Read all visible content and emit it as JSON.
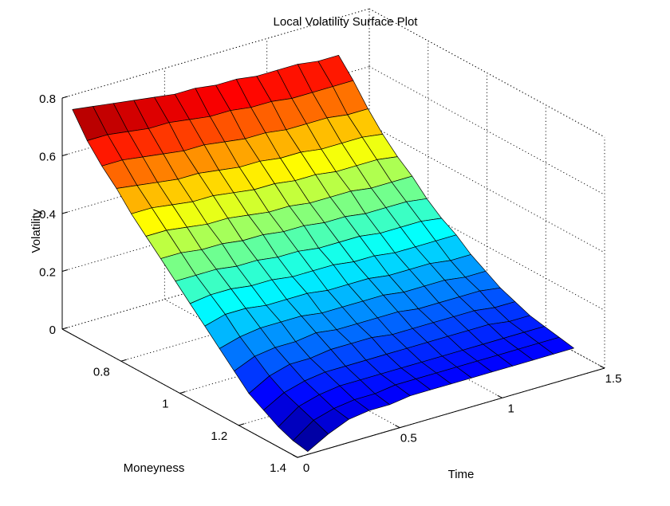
{
  "chart_data": {
    "type": "surface",
    "title": "Local Volatility Surface Plot",
    "xlabel": "Time",
    "ylabel": "Moneyness",
    "zlabel": "Volatility",
    "xlim": [
      0,
      1.5
    ],
    "ylim": [
      0.6,
      1.4
    ],
    "zlim": [
      0,
      0.8
    ],
    "xticks": [
      0,
      0.5,
      1,
      1.5
    ],
    "yticks": [
      0.8,
      1,
      1.2,
      1.4
    ],
    "zticks": [
      0,
      0.2,
      0.4,
      0.6,
      0.8
    ],
    "xtick_labels": [
      "0",
      "0.5",
      "1",
      "1.5"
    ],
    "ytick_labels": [
      "0.8",
      "1",
      "1.2",
      "1.4"
    ],
    "ztick_labels": [
      "0",
      "0.2",
      "0.4",
      "0.6",
      "0.8"
    ],
    "grid": true,
    "colormap": "jet",
    "time": [
      0.05,
      0.15,
      0.25,
      0.35,
      0.45,
      0.55,
      0.65,
      0.75,
      0.85,
      0.95,
      1.05,
      1.15,
      1.25,
      1.35
    ],
    "moneyness": [
      0.6,
      0.65,
      0.7,
      0.75,
      0.8,
      0.85,
      0.9,
      0.95,
      1.0,
      1.05,
      1.1,
      1.15,
      1.2,
      1.25,
      1.3,
      1.35,
      1.4
    ],
    "volatility": [
      [
        0.75,
        0.74,
        0.73,
        0.72,
        0.71,
        0.7,
        0.7,
        0.69,
        0.69,
        0.68,
        0.68,
        0.68,
        0.67,
        0.67
      ],
      [
        0.67,
        0.67,
        0.66,
        0.65,
        0.65,
        0.64,
        0.63,
        0.63,
        0.62,
        0.62,
        0.61,
        0.61,
        0.61,
        0.61
      ],
      [
        0.61,
        0.61,
        0.6,
        0.59,
        0.58,
        0.58,
        0.57,
        0.56,
        0.56,
        0.55,
        0.55,
        0.55,
        0.54,
        0.54
      ],
      [
        0.56,
        0.55,
        0.54,
        0.53,
        0.53,
        0.52,
        0.51,
        0.51,
        0.5,
        0.5,
        0.49,
        0.49,
        0.49,
        0.48
      ],
      [
        0.5,
        0.5,
        0.49,
        0.48,
        0.48,
        0.47,
        0.46,
        0.46,
        0.45,
        0.45,
        0.44,
        0.44,
        0.44,
        0.43
      ],
      [
        0.45,
        0.45,
        0.44,
        0.43,
        0.43,
        0.42,
        0.41,
        0.41,
        0.4,
        0.4,
        0.4,
        0.39,
        0.39,
        0.39
      ],
      [
        0.4,
        0.4,
        0.39,
        0.39,
        0.38,
        0.38,
        0.37,
        0.37,
        0.36,
        0.36,
        0.35,
        0.35,
        0.35,
        0.34
      ],
      [
        0.35,
        0.35,
        0.35,
        0.34,
        0.34,
        0.33,
        0.33,
        0.32,
        0.32,
        0.32,
        0.31,
        0.31,
        0.31,
        0.3
      ],
      [
        0.3,
        0.31,
        0.31,
        0.3,
        0.3,
        0.29,
        0.29,
        0.29,
        0.28,
        0.28,
        0.27,
        0.27,
        0.27,
        0.27
      ],
      [
        0.25,
        0.27,
        0.27,
        0.26,
        0.26,
        0.26,
        0.25,
        0.25,
        0.25,
        0.24,
        0.24,
        0.24,
        0.23,
        0.23
      ],
      [
        0.2,
        0.22,
        0.23,
        0.23,
        0.23,
        0.22,
        0.22,
        0.22,
        0.22,
        0.21,
        0.21,
        0.21,
        0.2,
        0.2
      ],
      [
        0.15,
        0.18,
        0.19,
        0.19,
        0.2,
        0.19,
        0.19,
        0.19,
        0.19,
        0.18,
        0.18,
        0.18,
        0.18,
        0.17
      ],
      [
        0.1,
        0.14,
        0.16,
        0.16,
        0.17,
        0.17,
        0.17,
        0.16,
        0.16,
        0.16,
        0.16,
        0.16,
        0.15,
        0.15
      ],
      [
        0.07,
        0.11,
        0.13,
        0.14,
        0.14,
        0.14,
        0.14,
        0.14,
        0.14,
        0.14,
        0.14,
        0.14,
        0.13,
        0.13
      ],
      [
        0.04,
        0.09,
        0.11,
        0.12,
        0.12,
        0.12,
        0.12,
        0.12,
        0.12,
        0.12,
        0.12,
        0.12,
        0.12,
        0.12
      ],
      [
        0.02,
        0.07,
        0.09,
        0.1,
        0.1,
        0.11,
        0.11,
        0.11,
        0.11,
        0.11,
        0.11,
        0.11,
        0.11,
        0.11
      ],
      [
        0.01,
        0.05,
        0.08,
        0.09,
        0.09,
        0.1,
        0.1,
        0.1,
        0.1,
        0.1,
        0.1,
        0.1,
        0.1,
        0.1
      ]
    ]
  }
}
